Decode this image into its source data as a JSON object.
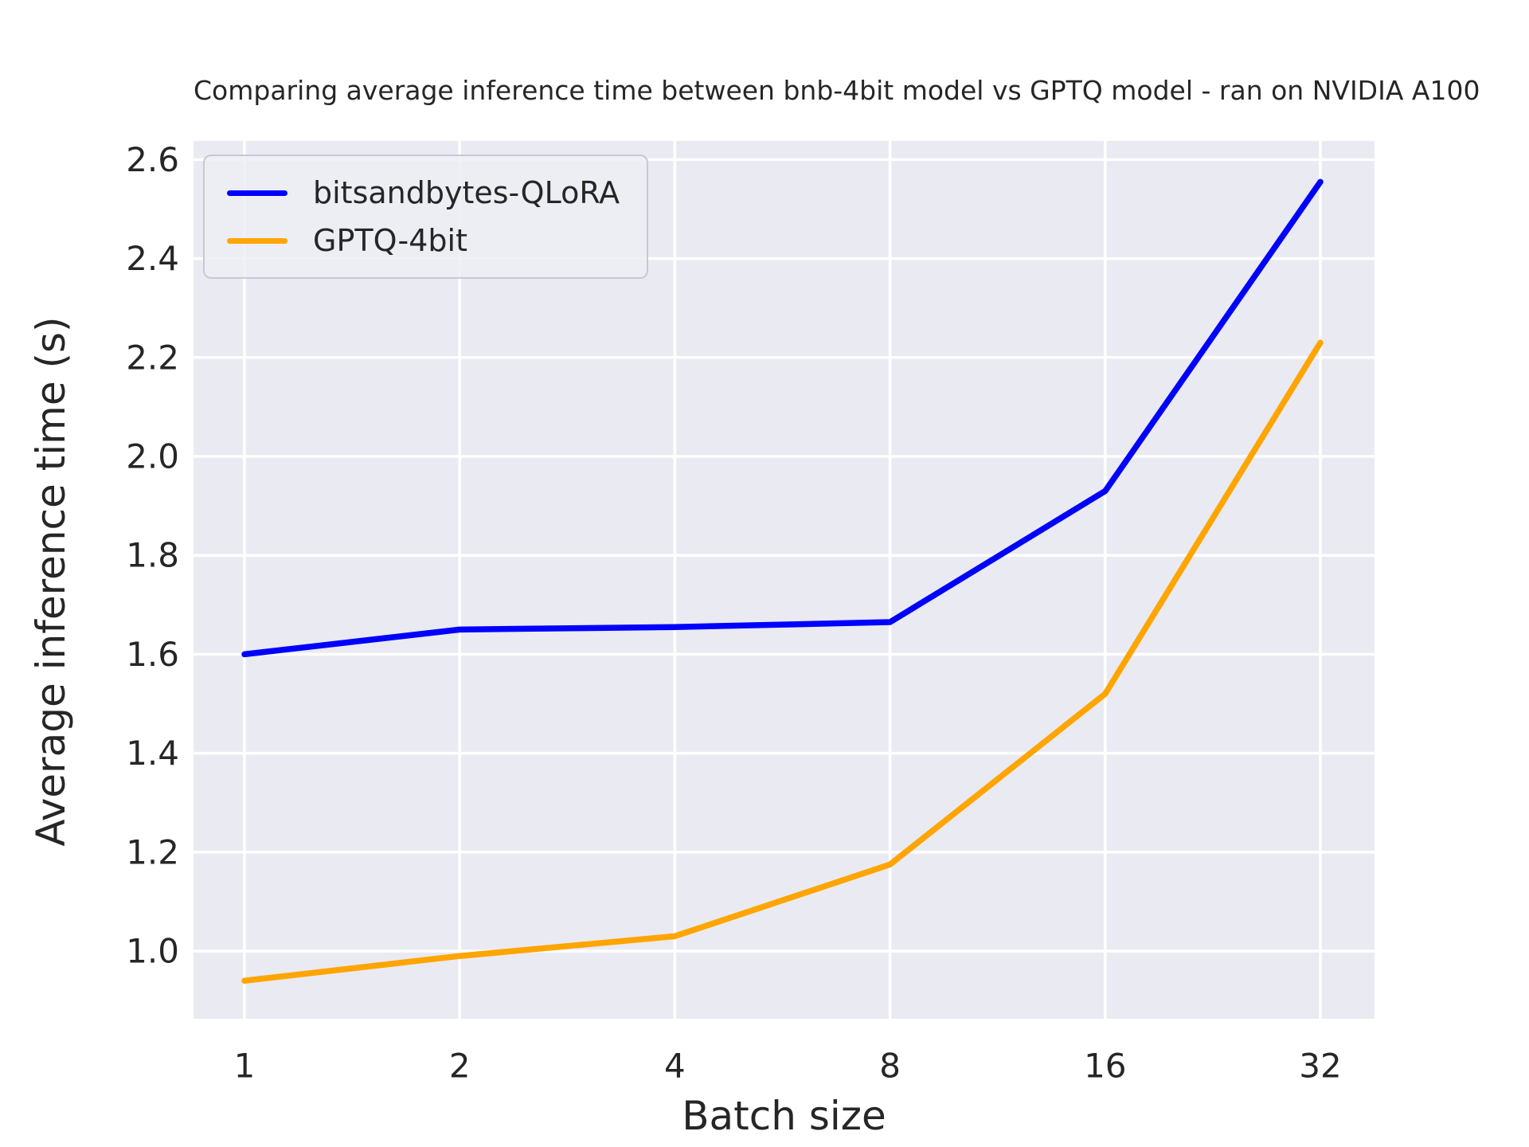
{
  "figure": {
    "background": "#ffffff"
  },
  "chart_data": {
    "type": "line",
    "title": "Comparing average inference time between bnb-4bit model vs GPTQ model - ran on NVIDIA A100",
    "xlabel": "Batch size",
    "ylabel": "Average inference time (s)",
    "x_scale": "log2",
    "categories": [
      1,
      2,
      4,
      8,
      16,
      32
    ],
    "x_tick_labels": [
      "1",
      "2",
      "4",
      "8",
      "16",
      "32"
    ],
    "y_ticks": [
      1.0,
      1.2,
      1.4,
      1.6,
      1.8,
      2.0,
      2.2,
      2.4,
      2.6
    ],
    "y_tick_labels": [
      "1.0",
      "1.2",
      "1.4",
      "1.6",
      "1.8",
      "2.0",
      "2.2",
      "2.4",
      "2.6"
    ],
    "ylim": [
      0.863,
      2.637
    ],
    "grid": true,
    "legend_position": "upper left",
    "plot_background": "#eaeaf2",
    "gridline_color": "#ffffff",
    "text_color": "#262626",
    "series": [
      {
        "name": "bitsandbytes-QLoRA",
        "color": "#0000ff",
        "values": [
          1.6,
          1.65,
          1.655,
          1.665,
          1.93,
          2.555
        ]
      },
      {
        "name": "GPTQ-4bit",
        "color": "#ffa500",
        "values": [
          0.94,
          0.99,
          1.03,
          1.175,
          1.52,
          2.23
        ]
      }
    ]
  }
}
